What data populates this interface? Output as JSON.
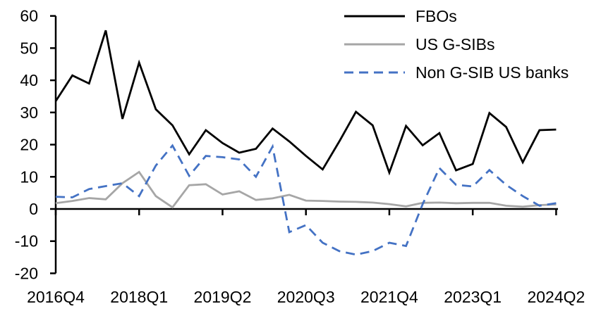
{
  "chart_data": {
    "type": "line",
    "title": "",
    "categories": [
      "2016Q4",
      "2017Q1",
      "2017Q2",
      "2017Q3",
      "2017Q4",
      "2018Q1",
      "2018Q2",
      "2018Q3",
      "2018Q4",
      "2019Q1",
      "2019Q2",
      "2019Q3",
      "2019Q4",
      "2020Q1",
      "2020Q2",
      "2020Q3",
      "2020Q4",
      "2021Q1",
      "2021Q2",
      "2021Q3",
      "2021Q4",
      "2022Q1",
      "2022Q2",
      "2022Q3",
      "2022Q4",
      "2023Q1",
      "2023Q2",
      "2023Q3",
      "2023Q4",
      "2024Q1",
      "2024Q2"
    ],
    "series": [
      {
        "name": "FBOs",
        "color": "#000000",
        "dash": "",
        "values": [
          33.5,
          41.5,
          39,
          55.5,
          28,
          45.5,
          31,
          26,
          17,
          24.5,
          20.5,
          17.5,
          18.7,
          25,
          21,
          16.5,
          12.3,
          21,
          30.2,
          26,
          11.3,
          25.8,
          19.8,
          23.6,
          12,
          14,
          29.8,
          25.5,
          14.5,
          24.5,
          24.7
        ]
      },
      {
        "name": "US G-SIBs",
        "color": "#a6a6a6",
        "dash": "",
        "values": [
          1.8,
          2.5,
          3.4,
          3,
          8,
          11.5,
          4,
          0.5,
          7.4,
          7.7,
          4.5,
          5.5,
          2.8,
          3.3,
          4.4,
          2.6,
          2.5,
          2.3,
          2.2,
          2.0,
          1.5,
          0.8,
          1.9,
          2.0,
          1.8,
          1.9,
          1.9,
          1.0,
          0.7,
          1.2,
          1.4
        ]
      },
      {
        "name": "Non G-SIB US banks",
        "color": "#4472c4",
        "dash": "13,8",
        "values": [
          3.8,
          3.6,
          6.2,
          7.1,
          8,
          4,
          13.5,
          19.7,
          10.3,
          16.5,
          16.1,
          15.4,
          10,
          19.4,
          -7.2,
          -5,
          -10.5,
          -13.1,
          -14.2,
          -13.1,
          -10.5,
          -11.5,
          1.5,
          12.7,
          7.5,
          7,
          12.1,
          7.5,
          4,
          1,
          1.8
        ]
      }
    ],
    "ylim": [
      -20,
      60
    ],
    "ytick_values": [
      60,
      50,
      40,
      30,
      20,
      10,
      0,
      -10,
      -20
    ],
    "ytick_labels": [
      "60",
      "50",
      "40",
      "30",
      "20",
      "10",
      "0",
      "-10",
      "-20"
    ],
    "xtick_indices": [
      0,
      5,
      10,
      15,
      20,
      25,
      30
    ],
    "xtick_labels": [
      "2016Q4",
      "2018Q1",
      "2019Q2",
      "2020Q3",
      "2021Q4",
      "2023Q1",
      "2024Q2"
    ],
    "grid": false,
    "legend_position": "top-right"
  }
}
